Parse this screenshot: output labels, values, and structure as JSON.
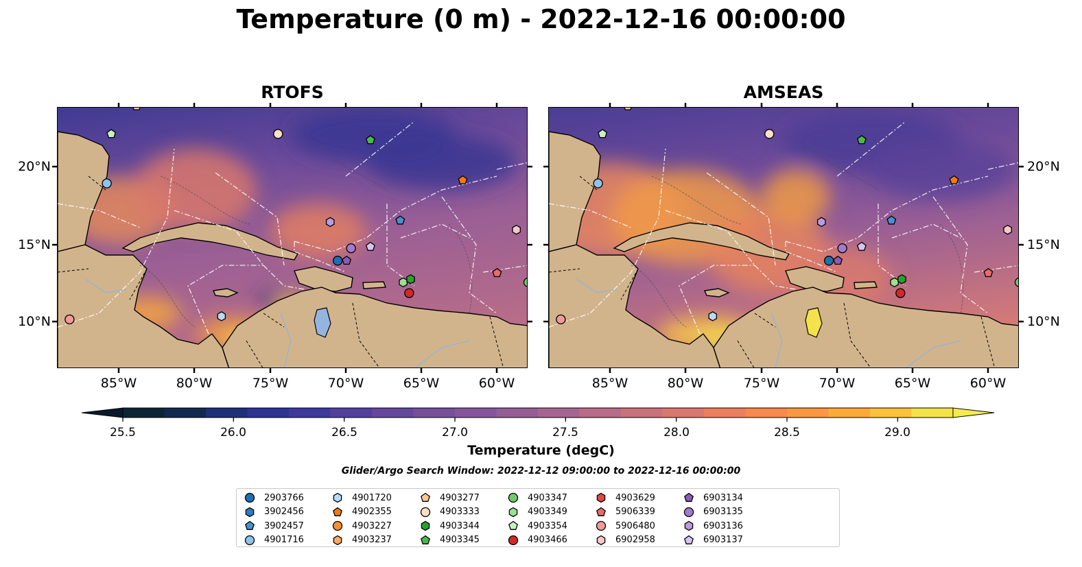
{
  "title": "Temperature (0 m) - 2022-12-16 00:00:00",
  "panels": [
    {
      "title": "RTOFS"
    },
    {
      "title": "AMSEAS"
    }
  ],
  "lon_labels": [
    "85°W",
    "80°W",
    "75°W",
    "70°W",
    "65°W",
    "60°W"
  ],
  "lat_labels": [
    "20°N",
    "15°N",
    "10°N"
  ],
  "colorbar": {
    "label": "Temperature (degC)",
    "ticks": [
      "25.5",
      "26.0",
      "26.5",
      "27.0",
      "27.5",
      "28.0",
      "28.5",
      "29.0"
    ],
    "range": [
      25.5,
      29.25
    ],
    "colors": [
      "#0d2436",
      "#12294e",
      "#1f2f78",
      "#2d3391",
      "#3e3a9a",
      "#52409c",
      "#65489c",
      "#754f9a",
      "#85569a",
      "#955d96",
      "#a66590",
      "#b86c87",
      "#c8727b",
      "#d9796d",
      "#ea805d",
      "#f5894e",
      "#fa9741",
      "#fdaa3b",
      "#fbc13e",
      "#f3e24a"
    ],
    "extend": "both"
  },
  "search_window": "Glider/Argo Search Window: 2022-12-12 09:00:00 to 2022-12-16 00:00:00",
  "floats": [
    {
      "id": "2903766",
      "marker": "circle",
      "color": "#1f6fb4"
    },
    {
      "id": "3902456",
      "marker": "hexagon",
      "color": "#2f7cc0"
    },
    {
      "id": "3902457",
      "marker": "pentagon",
      "color": "#4a90d0"
    },
    {
      "id": "4901716",
      "marker": "circle",
      "color": "#8fc3ec"
    },
    {
      "id": "4901720",
      "marker": "hexagon",
      "color": "#b8daf4"
    },
    {
      "id": "4902355",
      "marker": "pentagon",
      "color": "#f07a14"
    },
    {
      "id": "4903227",
      "marker": "circle",
      "color": "#fb8f2e"
    },
    {
      "id": "4903237",
      "marker": "hexagon",
      "color": "#fdab64"
    },
    {
      "id": "4903277",
      "marker": "pentagon",
      "color": "#fdc896"
    },
    {
      "id": "4903333",
      "marker": "circle",
      "color": "#fde0c4"
    },
    {
      "id": "4903344",
      "marker": "hexagon",
      "color": "#2ca02c"
    },
    {
      "id": "4903345",
      "marker": "pentagon",
      "color": "#4cb84c"
    },
    {
      "id": "4903347",
      "marker": "circle",
      "color": "#72c86f"
    },
    {
      "id": "4903349",
      "marker": "hexagon",
      "color": "#9ede96"
    },
    {
      "id": "4903354",
      "marker": "pentagon",
      "color": "#c8f0c0"
    },
    {
      "id": "4903466",
      "marker": "circle",
      "color": "#d62728"
    },
    {
      "id": "4903629",
      "marker": "hexagon",
      "color": "#e04848"
    },
    {
      "id": "5906339",
      "marker": "pentagon",
      "color": "#ea6a6a"
    },
    {
      "id": "5906480",
      "marker": "circle",
      "color": "#f19a9a"
    },
    {
      "id": "6902958",
      "marker": "hexagon",
      "color": "#f7c8c8"
    },
    {
      "id": "6903134",
      "marker": "pentagon",
      "color": "#8a5cb8"
    },
    {
      "id": "6903135",
      "marker": "circle",
      "color": "#a07cd0"
    },
    {
      "id": "6903136",
      "marker": "hexagon",
      "color": "#bb9be0"
    },
    {
      "id": "6903137",
      "marker": "pentagon",
      "color": "#d8c4f2"
    }
  ],
  "observations": [
    {
      "id": "4903277",
      "lon": -84.5,
      "lat": 24.0
    },
    {
      "id": "4903354",
      "lon": -86.2,
      "lat": 22.2
    },
    {
      "id": "4901716",
      "lon": -86.5,
      "lat": 19.0
    },
    {
      "id": "4903333",
      "lon": -75.0,
      "lat": 22.2
    },
    {
      "id": "4903345",
      "lon": -68.8,
      "lat": 21.8
    },
    {
      "id": "4902355",
      "lon": -62.6,
      "lat": 19.2
    },
    {
      "id": "6903136",
      "lon": -71.5,
      "lat": 16.5
    },
    {
      "id": "3902457",
      "lon": -66.8,
      "lat": 16.6
    },
    {
      "id": "6902958",
      "lon": -59.0,
      "lat": 16.0
    },
    {
      "id": "6903135",
      "lon": -70.1,
      "lat": 14.8
    },
    {
      "id": "6903137",
      "lon": -68.8,
      "lat": 14.9
    },
    {
      "id": "2903766",
      "lon": -71.0,
      "lat": 14.0
    },
    {
      "id": "6903134",
      "lon": -70.4,
      "lat": 14.0
    },
    {
      "id": "5906339",
      "lon": -60.3,
      "lat": 13.2
    },
    {
      "id": "4903347",
      "lon": -58.2,
      "lat": 12.6
    },
    {
      "id": "4903349",
      "lon": -66.6,
      "lat": 12.6
    },
    {
      "id": "4903344",
      "lon": -66.1,
      "lat": 12.8
    },
    {
      "id": "4903466",
      "lon": -66.2,
      "lat": 11.9
    },
    {
      "id": "4901720",
      "lon": -78.8,
      "lat": 10.4
    },
    {
      "id": "5906480",
      "lon": -89.0,
      "lat": 10.2
    },
    {
      "id": "4903227",
      "lon": -57.8,
      "lat": 10.5
    }
  ]
}
